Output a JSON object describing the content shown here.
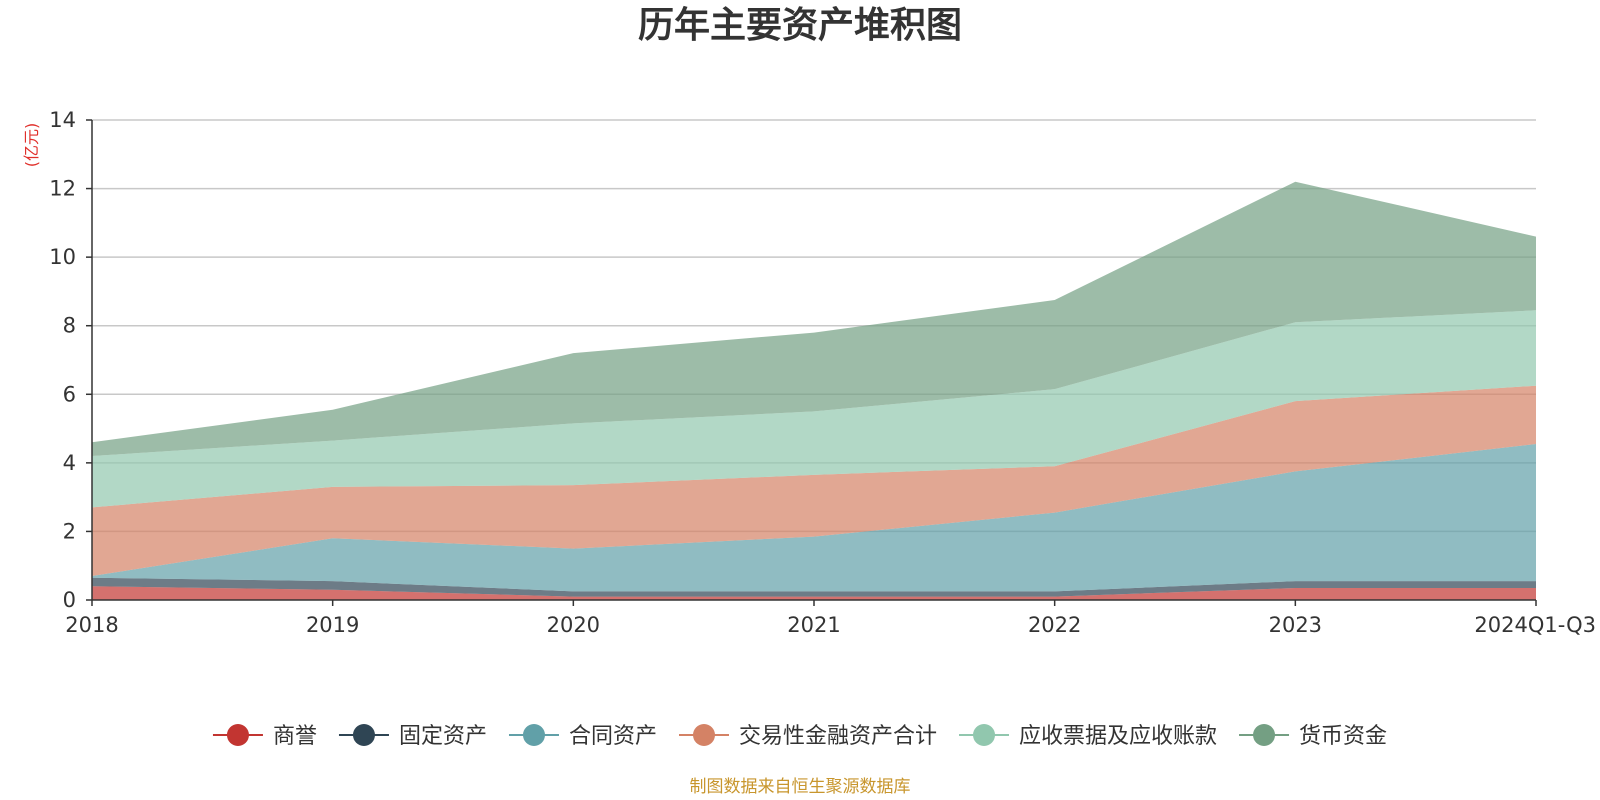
{
  "title": "历年主要资产堆积图",
  "source": "制图数据来自恒生聚源数据库",
  "chart_data": {
    "type": "area",
    "stacked": true,
    "title": "历年主要资产堆积图",
    "ylabel": "(亿元)",
    "xlabel": "",
    "categories": [
      "2018",
      "2019",
      "2020",
      "2021",
      "2022",
      "2023",
      "2024Q1-Q3"
    ],
    "ylim": [
      0,
      14
    ],
    "yticks": [
      "0",
      "2",
      "4",
      "6",
      "8",
      "10",
      "12",
      "14"
    ],
    "grid": true,
    "legend_position": "bottom",
    "series": [
      {
        "name": "商誉",
        "color": "#c23531",
        "values": [
          0.4,
          0.3,
          0.1,
          0.1,
          0.1,
          0.35,
          0.35
        ]
      },
      {
        "name": "固定资产",
        "color": "#2f4554",
        "values": [
          0.25,
          0.25,
          0.15,
          0.15,
          0.15,
          0.2,
          0.2
        ]
      },
      {
        "name": "合同资产",
        "color": "#61a0a8",
        "values": [
          0.05,
          1.25,
          1.25,
          1.6,
          2.3,
          3.2,
          4.0
        ]
      },
      {
        "name": "交易性金融资产合计",
        "color": "#d48265",
        "values": [
          2.0,
          1.5,
          1.85,
          1.8,
          1.35,
          2.05,
          1.7
        ]
      },
      {
        "name": "应收票据及应收账款",
        "color": "#91c7ae",
        "values": [
          1.5,
          1.35,
          1.8,
          1.85,
          2.25,
          2.3,
          2.2
        ]
      },
      {
        "name": "货币资金",
        "color": "#749f83",
        "values": [
          0.4,
          0.9,
          2.05,
          2.3,
          2.6,
          4.1,
          2.15
        ]
      }
    ]
  }
}
